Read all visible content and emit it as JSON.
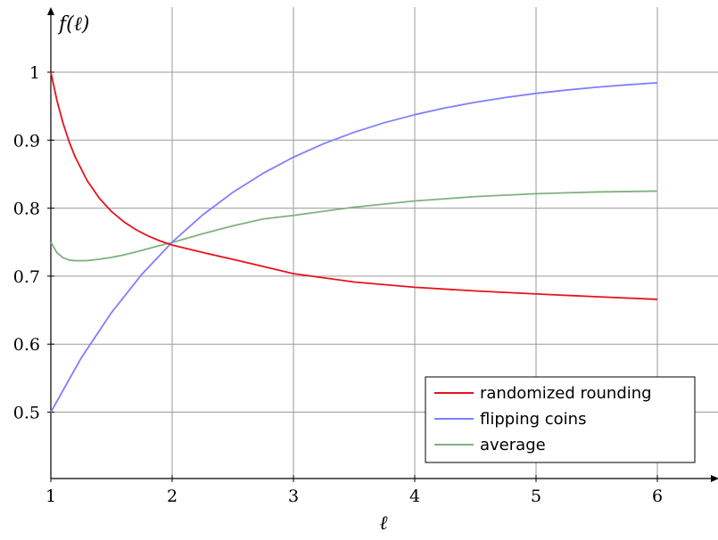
{
  "chart_data": {
    "type": "line",
    "xlabel": "ℓ",
    "ylabel": "f(ℓ)",
    "xlim": [
      1,
      6.5
    ],
    "ylim": [
      0.4,
      1.1
    ],
    "x_ticks": [
      1,
      2,
      3,
      4,
      5,
      6
    ],
    "y_ticks": [
      0.5,
      0.6,
      0.7,
      0.8,
      0.9,
      1
    ],
    "x_tick_labels": [
      "1",
      "2",
      "3",
      "4",
      "5",
      "6"
    ],
    "y_tick_labels": [
      "0.5",
      "0.6",
      "0.7",
      "0.8",
      "0.9",
      "1"
    ],
    "grid": true,
    "legend_position": "bottom-right",
    "series": [
      {
        "name": "randomized rounding",
        "color": "#e8121a",
        "x": [
          1,
          1.05,
          1.1,
          1.15,
          1.2,
          1.3,
          1.4,
          1.5,
          1.6,
          1.7,
          1.8,
          1.9,
          2,
          2.25,
          2.5,
          2.75,
          3,
          3.5,
          4,
          4.5,
          5,
          5.5,
          6
        ],
        "y": [
          1.0,
          0.9586,
          0.9253,
          0.8981,
          0.8755,
          0.8403,
          0.8145,
          0.7951,
          0.7802,
          0.7685,
          0.7592,
          0.7518,
          0.7458,
          0.7349,
          0.7247,
          0.7143,
          0.7037,
          0.6914,
          0.6836,
          0.6782,
          0.6738,
          0.6697,
          0.6659
        ]
      },
      {
        "name": "flipping coins",
        "color": "#7f7fff",
        "x": [
          1,
          1.25,
          1.5,
          1.75,
          2,
          2.25,
          2.5,
          2.75,
          3,
          3.25,
          3.5,
          3.75,
          4,
          4.25,
          4.5,
          4.75,
          5,
          5.25,
          5.5,
          5.75,
          6
        ],
        "y": [
          0.5,
          0.5796,
          0.6464,
          0.7027,
          0.75,
          0.7898,
          0.8232,
          0.8513,
          0.875,
          0.8949,
          0.9116,
          0.9257,
          0.9375,
          0.9474,
          0.9558,
          0.9628,
          0.9688,
          0.9737,
          0.9779,
          0.9814,
          0.9844
        ]
      },
      {
        "name": "average",
        "color": "#7fb27f",
        "x": [
          1,
          1.05,
          1.1,
          1.15,
          1.2,
          1.3,
          1.4,
          1.5,
          1.6,
          1.7,
          1.8,
          1.9,
          2,
          2.25,
          2.5,
          2.75,
          3,
          3.5,
          4,
          4.5,
          5,
          5.5,
          6
        ],
        "y": [
          0.75,
          0.7346,
          0.7271,
          0.7237,
          0.7227,
          0.7229,
          0.7249,
          0.7276,
          0.7312,
          0.7356,
          0.7403,
          0.7451,
          0.7495,
          0.7623,
          0.7739,
          0.7841,
          0.7893,
          0.8015,
          0.8106,
          0.817,
          0.8213,
          0.8238,
          0.8251
        ]
      }
    ]
  }
}
